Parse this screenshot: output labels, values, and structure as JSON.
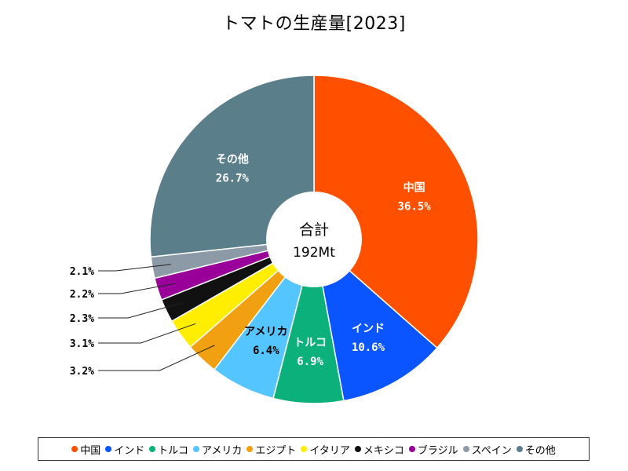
{
  "chart_data": {
    "type": "pie",
    "title": "トマトの生産量[2023]",
    "center": {
      "title": "合計",
      "value": "192Mt"
    },
    "categories": [
      "中国",
      "インド",
      "トルコ",
      "アメリカ",
      "エジプト",
      "イタリア",
      "メキシコ",
      "ブラジル",
      "スペイン",
      "その他"
    ],
    "values": [
      36.5,
      10.6,
      6.9,
      6.4,
      3.2,
      3.1,
      2.3,
      2.2,
      2.1,
      26.7
    ],
    "labels": [
      "36.5%",
      "10.6%",
      "6.9%",
      "6.4%",
      "3.2%",
      "3.1%",
      "2.3%",
      "2.2%",
      "2.1%",
      "26.7%"
    ],
    "colors": [
      "#ff5000",
      "#0a55ff",
      "#0bb07a",
      "#55c5ff",
      "#f0a010",
      "#ffee00",
      "#111111",
      "#990099",
      "#8c99a6",
      "#5a7e8a"
    ]
  }
}
